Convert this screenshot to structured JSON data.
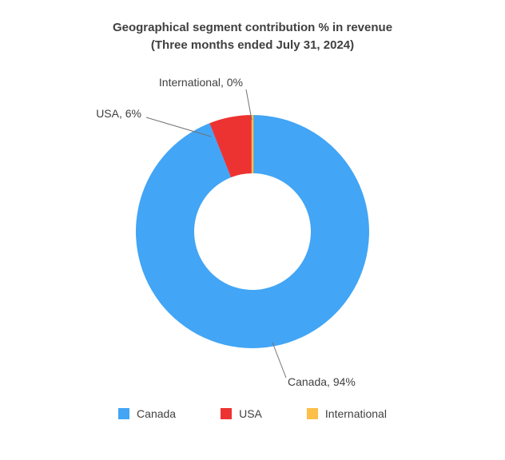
{
  "title": {
    "line1": "Geographical segment contribution % in revenue",
    "line2": "(Three months ended July 31, 2024)"
  },
  "chart_data": {
    "type": "pie",
    "subtype": "donut",
    "title": "Geographical segment contribution % in revenue (Three months ended July 31, 2024)",
    "categories": [
      "Canada",
      "USA",
      "International"
    ],
    "values": [
      94,
      6,
      0
    ],
    "unit": "%",
    "colors": [
      "#42A5F5",
      "#ED3232",
      "#FCBF47"
    ],
    "data_point_labels": [
      "Canada, 94%",
      "USA, 6%",
      "International, 0%"
    ],
    "legend_position": "bottom",
    "donut_hole_ratio": 0.5,
    "start_angle_deg": 0,
    "direction": "clockwise"
  },
  "data_labels": {
    "international": "International, 0%",
    "usa": "USA, 6%",
    "canada": "Canada, 94%"
  },
  "legend": {
    "items": [
      {
        "label": "Canada",
        "color": "#42A5F5"
      },
      {
        "label": "USA",
        "color": "#ED3232"
      },
      {
        "label": "International",
        "color": "#FCBF47"
      }
    ]
  }
}
